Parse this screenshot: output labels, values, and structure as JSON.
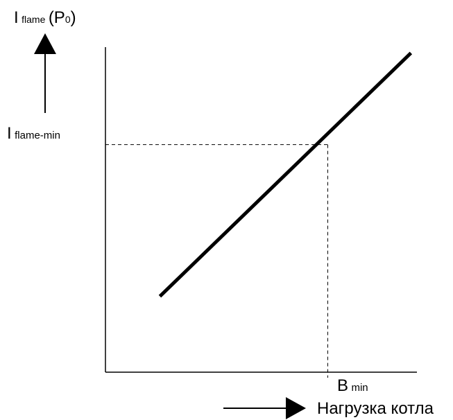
{
  "chart_data": {
    "type": "line",
    "title": "",
    "y_label": {
      "main": "I",
      "subscript": "flame",
      "paren_open": "(P",
      "paren_subscript": "0",
      "paren_close": ")"
    },
    "x_label": "Нагрузка котла",
    "threshold_y_label": {
      "main": "I",
      "subscript": "flame-min"
    },
    "threshold_x_label": {
      "main": "B",
      "subscript": "min"
    },
    "xlim": [
      0,
      10
    ],
    "ylim": [
      0,
      10
    ],
    "grid": false,
    "series": [
      {
        "x": [
          1.8,
          10.1
        ],
        "y": [
          2.4,
          10.1
        ]
      }
    ],
    "reference": {
      "x": 7.35,
      "y": 7.2
    },
    "colors": {
      "line": "#000000",
      "axis": "#000000",
      "background": "#ffffff"
    }
  }
}
